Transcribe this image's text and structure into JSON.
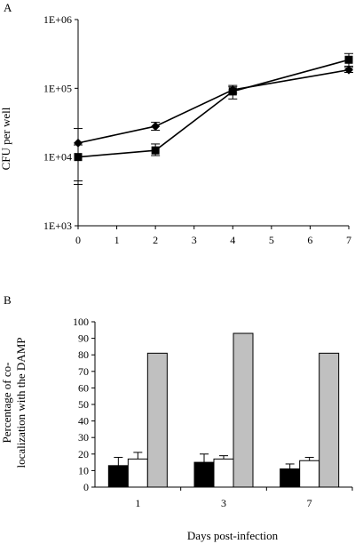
{
  "chart_data": [
    {
      "panel_label": "A",
      "type": "line",
      "ylabel": "CFU per well",
      "yscale": "log",
      "ylim": [
        1000,
        1000000
      ],
      "y_tick_labels": [
        "1E+03",
        "1E+04",
        "1E+05",
        "1E+06"
      ],
      "xlim": [
        0,
        7
      ],
      "x_tick_labels": [
        "0",
        "1",
        "2",
        "3",
        "4",
        "5",
        "6",
        "7"
      ],
      "series": [
        {
          "marker": "diamond",
          "x": [
            0,
            2,
            4,
            7
          ],
          "y": [
            16000,
            28000,
            95000,
            185000
          ],
          "err_low": [
            4000,
            24500,
            85000,
            170000
          ],
          "err_high": [
            26000,
            32000,
            110000,
            200000
          ]
        },
        {
          "marker": "square",
          "x": [
            0,
            2,
            4,
            7
          ],
          "y": [
            10000,
            12500,
            90000,
            260000
          ],
          "err_low": [
            4500,
            10500,
            70000,
            210000
          ],
          "err_high": [
            15000,
            15500,
            105000,
            320000
          ]
        }
      ]
    },
    {
      "panel_label": "B",
      "type": "bar",
      "xlabel": "Days post-infection",
      "ylabel_lines": [
        "Percentage of co-",
        "localization with the DAMP"
      ],
      "categories": [
        "1",
        "3",
        "7"
      ],
      "ylim": [
        0,
        100
      ],
      "y_tick_labels": [
        "0",
        "10",
        "20",
        "30",
        "40",
        "50",
        "60",
        "70",
        "80",
        "90",
        "100"
      ],
      "series": [
        {
          "color": "#000000",
          "values": [
            13,
            15,
            11
          ],
          "errors": [
            5,
            5,
            3
          ]
        },
        {
          "color": "#ffffff",
          "values": [
            17,
            17,
            16
          ],
          "errors": [
            4,
            2,
            2
          ]
        },
        {
          "color": "#c0c0c0",
          "values": [
            81,
            93,
            81
          ],
          "errors": [
            0,
            0,
            0
          ]
        }
      ]
    }
  ]
}
